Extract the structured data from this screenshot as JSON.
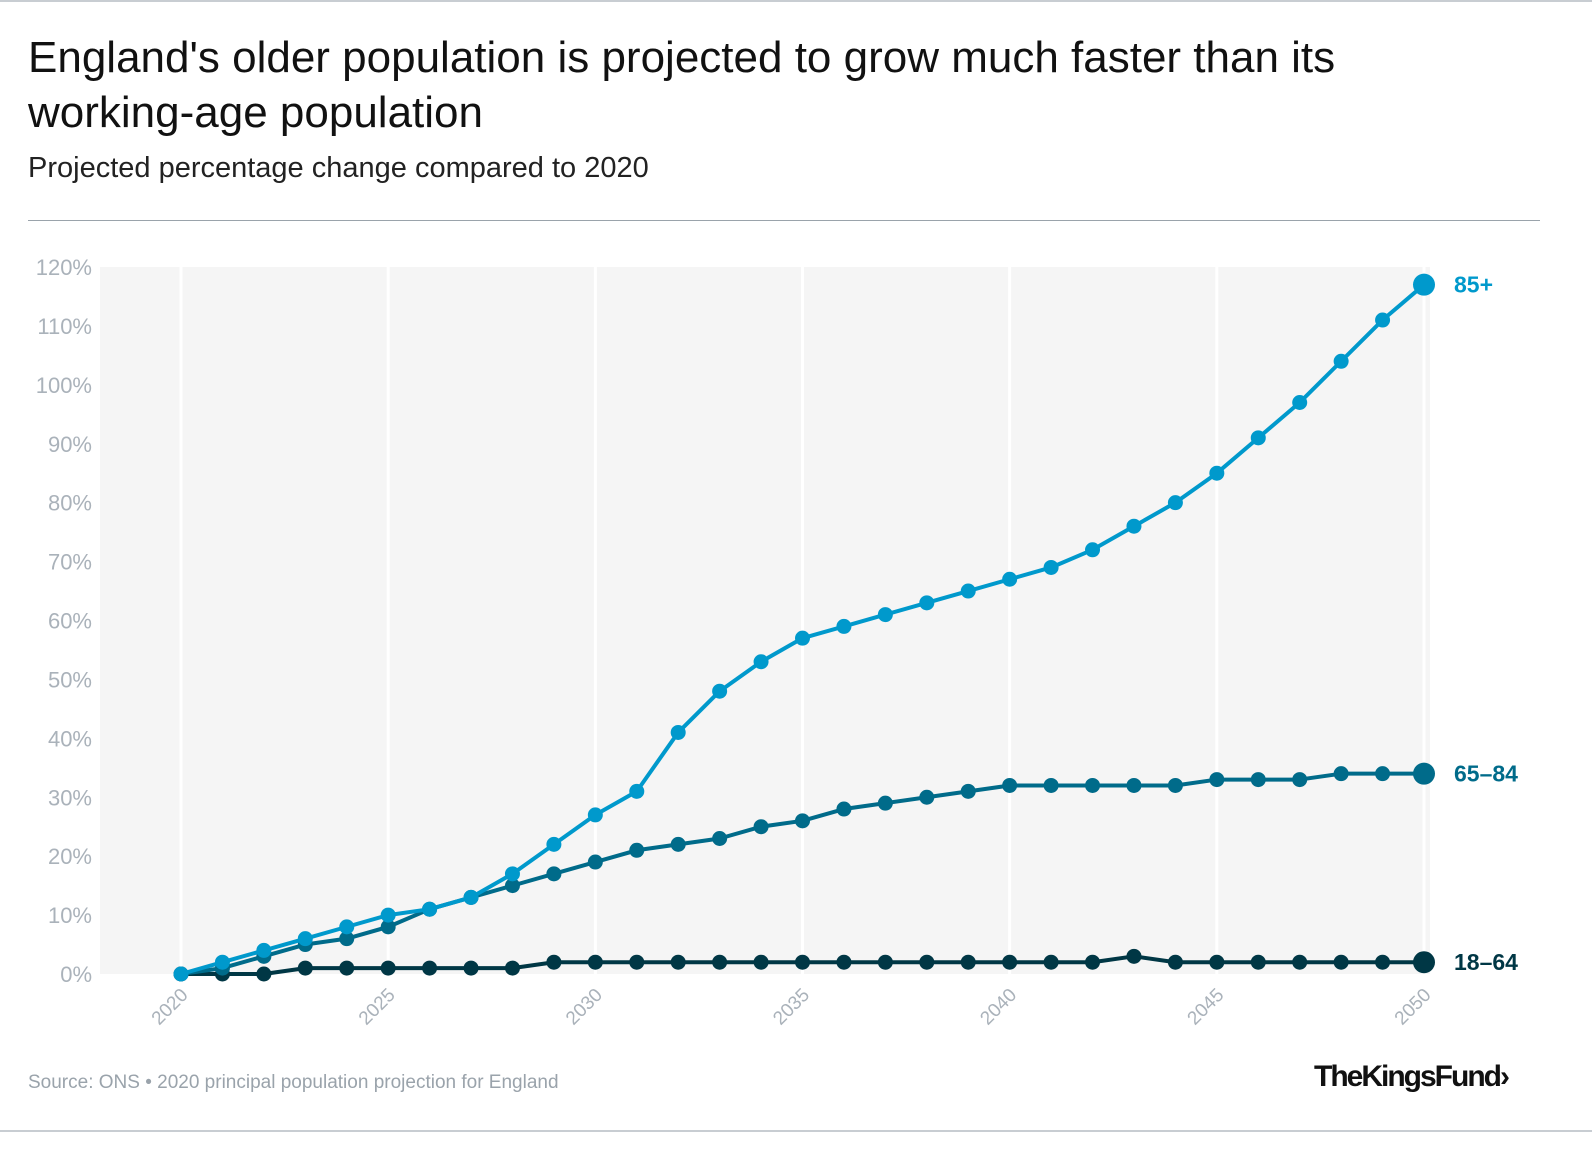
{
  "title": "England's older population is projected to grow much faster than its working-age population",
  "subtitle": "Projected percentage change compared to 2020",
  "source": "Source: ONS • 2020 principal population projection for England",
  "logo": "The King's Fund",
  "logo_display": "TheKingsFund›",
  "chart_data": {
    "type": "line",
    "title": "England's older population is projected to grow much faster than its working-age population",
    "subtitle": "Projected percentage change compared to 2020",
    "x": [
      2020,
      2021,
      2022,
      2023,
      2024,
      2025,
      2026,
      2027,
      2028,
      2029,
      2030,
      2031,
      2032,
      2033,
      2034,
      2035,
      2036,
      2037,
      2038,
      2039,
      2040,
      2041,
      2042,
      2043,
      2044,
      2045,
      2046,
      2047,
      2048,
      2049,
      2050
    ],
    "xticks": [
      "2020",
      "2025",
      "2030",
      "2035",
      "2040",
      "2045",
      "2050"
    ],
    "yticks": [
      "0%",
      "10%",
      "20%",
      "30%",
      "40%",
      "50%",
      "60%",
      "70%",
      "80%",
      "90%",
      "100%",
      "110%",
      "120%"
    ],
    "ylim": [
      0,
      120
    ],
    "xlim": [
      2020,
      2050
    ],
    "grid": "vertical",
    "series": [
      {
        "name": "85+",
        "color": "#0099cc",
        "values": [
          0,
          2,
          4,
          6,
          8,
          10,
          11,
          13,
          17,
          22,
          27,
          31,
          41,
          48,
          53,
          57,
          59,
          61,
          63,
          65,
          67,
          69,
          72,
          76,
          80,
          85,
          91,
          97,
          104,
          111,
          117
        ]
      },
      {
        "name": "65–84",
        "color": "#006b8a",
        "values": [
          0,
          1,
          3,
          5,
          6,
          8,
          11,
          13,
          15,
          17,
          19,
          21,
          22,
          23,
          25,
          26,
          28,
          29,
          30,
          31,
          32,
          32,
          32,
          32,
          32,
          33,
          33,
          33,
          34,
          34,
          34
        ]
      },
      {
        "name": "18–64",
        "color": "#003745",
        "values": [
          0,
          0,
          0,
          1,
          1,
          1,
          1,
          1,
          1,
          2,
          2,
          2,
          2,
          2,
          2,
          2,
          2,
          2,
          2,
          2,
          2,
          2,
          2,
          3,
          2,
          2,
          2,
          2,
          2,
          2,
          2
        ]
      }
    ]
  }
}
